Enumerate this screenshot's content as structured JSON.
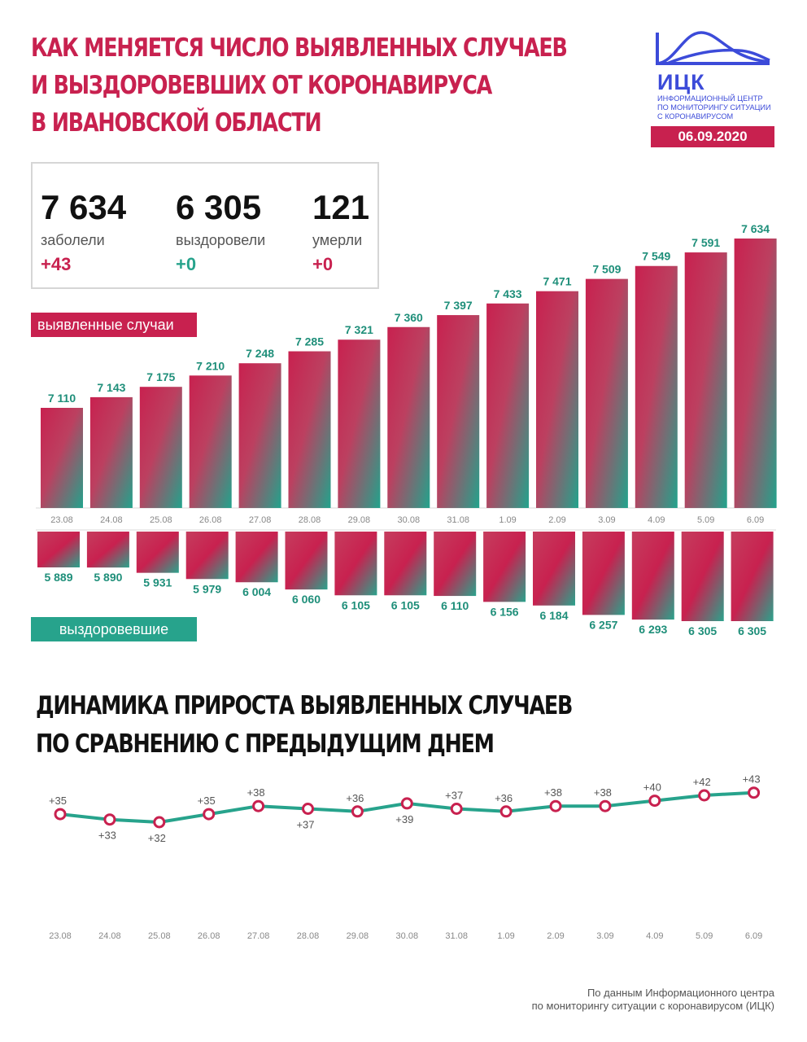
{
  "header": {
    "title_lines": [
      "КАК МЕНЯЕТСЯ ЧИСЛО ВЫЯВЛЕННЫХ СЛУЧАЕВ",
      "И ВЫЗДОРОВЕВШИХ ОТ КОРОНАВИРУСА",
      "В ИВАНОВСКОЙ ОБЛАСТИ"
    ],
    "date": "06.09.2020"
  },
  "logo": {
    "name": "ИЦК",
    "subtitle_lines": [
      "ИНФОРМАЦИОННЫЙ ЦЕНТР",
      "ПО МОНИТОРИНГУ СИТУАЦИИ",
      "С КОРОНАВИРУСОМ"
    ]
  },
  "stats": {
    "infected": {
      "value": "7 634",
      "label": "заболели",
      "delta": "+43"
    },
    "recovered": {
      "value": "6 305",
      "label": "выздоровели",
      "delta": "+0"
    },
    "died": {
      "value": "121",
      "label": "умерли",
      "delta": "+0"
    }
  },
  "labels": {
    "cases": "выявленные случаи",
    "recovered": "выздоровевшие"
  },
  "growth_title_lines": [
    "ДИНАМИКА ПРИРОСТА ВЫЯВЛЕННЫХ СЛУЧАЕВ",
    "ПО СРАВНЕНИЮ С ПРЕДЫДУЩИМ ДНЕМ"
  ],
  "source_lines": [
    "По данным Информационного центра",
    "по мониторингу ситуации с коронавирусом (ИЦК)"
  ],
  "colors": {
    "red": "#c8214f",
    "teal": "#27a38c",
    "gray": "#d6d6d6"
  },
  "chart_data": [
    {
      "type": "bar",
      "categories": [
        "23.08",
        "24.08",
        "25.08",
        "26.08",
        "27.08",
        "28.08",
        "29.08",
        "30.08",
        "31.08",
        "1.09",
        "2.09",
        "3.09",
        "4.09",
        "5.09",
        "6.09"
      ],
      "series": [
        {
          "name": "выявленные случаи",
          "values": [
            7110,
            7143,
            7175,
            7210,
            7248,
            7285,
            7321,
            7360,
            7397,
            7433,
            7471,
            7509,
            7549,
            7591,
            7634
          ]
        }
      ],
      "data_labels": [
        "7 110",
        "7 143",
        "7 175",
        "7 210",
        "7 248",
        "7 285",
        "7 321",
        "7 360",
        "7 397",
        "7 433",
        "7 471",
        "7 509",
        "7 549",
        "7 591",
        "7 634"
      ]
    },
    {
      "type": "bar",
      "categories": [
        "23.08",
        "24.08",
        "25.08",
        "26.08",
        "27.08",
        "28.08",
        "29.08",
        "30.08",
        "31.08",
        "1.09",
        "2.09",
        "3.09",
        "4.09",
        "5.09",
        "6.09"
      ],
      "series": [
        {
          "name": "выздоровевшие",
          "values": [
            5889,
            5890,
            5931,
            5979,
            6004,
            6060,
            6105,
            6105,
            6110,
            6156,
            6184,
            6257,
            6293,
            6305,
            6305
          ]
        }
      ],
      "data_labels": [
        "5 889",
        "5 890",
        "5 931",
        "5 979",
        "6 004",
        "6 060",
        "6 105",
        "6 105",
        "6 110",
        "6 156",
        "6 184",
        "6 257",
        "6 293",
        "6 305",
        "6 305"
      ],
      "orientation": "downward"
    },
    {
      "type": "line",
      "title": "ДИНАМИКА ПРИРОСТА ВЫЯВЛЕННЫХ СЛУЧАЕВ ПО СРАВНЕНИЮ С ПРЕДЫДУЩИМ ДНЕМ",
      "x": [
        "23.08",
        "24.08",
        "25.08",
        "26.08",
        "27.08",
        "28.08",
        "29.08",
        "30.08",
        "31.08",
        "1.09",
        "2.09",
        "3.09",
        "4.09",
        "5.09",
        "6.09"
      ],
      "y": [
        35,
        33,
        32,
        35,
        38,
        37,
        36,
        39,
        37,
        36,
        38,
        38,
        40,
        42,
        43
      ],
      "data_labels": [
        "+35",
        "+33",
        "+32",
        "+35",
        "+38",
        "+37",
        "+36",
        "+39",
        "+37",
        "+36",
        "+38",
        "+38",
        "+40",
        "+42",
        "+43"
      ],
      "label_positions": [
        "above",
        "below",
        "below",
        "above",
        "above",
        "below",
        "above",
        "below",
        "above",
        "above",
        "above",
        "above",
        "above",
        "above",
        "above"
      ]
    }
  ]
}
